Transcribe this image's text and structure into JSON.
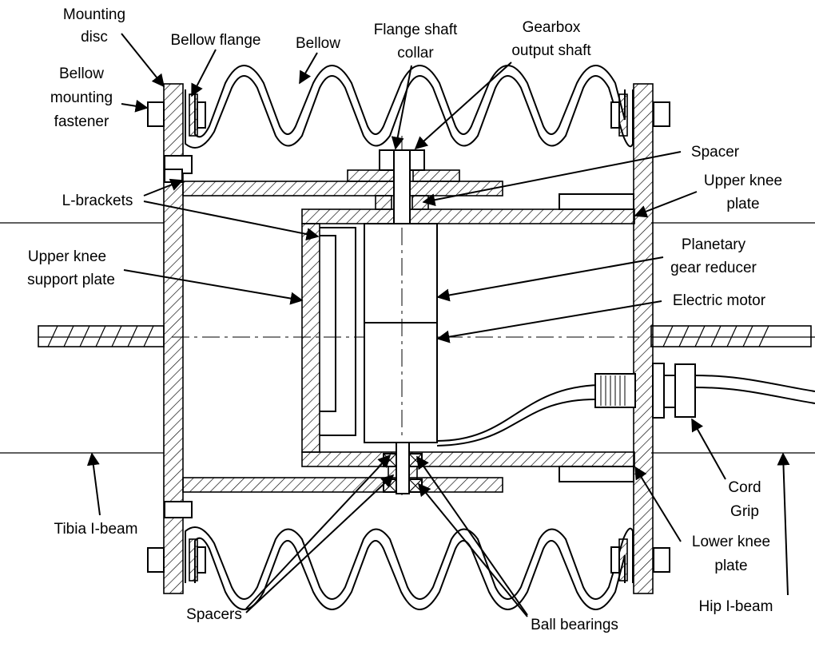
{
  "labels": {
    "mounting_disc": [
      "Mounting",
      "disc"
    ],
    "bellow_flange": "Bellow flange",
    "bellow": "Bellow",
    "flange_shaft_collar": [
      "Flange shaft",
      "collar"
    ],
    "gearbox_output_shaft": [
      "Gearbox",
      "output shaft"
    ],
    "bellow_mounting_fastener": [
      "Bellow",
      "mounting",
      "fastener"
    ],
    "spacer": "Spacer",
    "upper_knee_plate": [
      "Upper knee",
      "plate"
    ],
    "l_brackets": "L-brackets",
    "planetary_gear_reducer": [
      "Planetary",
      "gear reducer"
    ],
    "upper_knee_support_plate": [
      "Upper knee",
      "support plate"
    ],
    "electric_motor": "Electric motor",
    "cord_grip": [
      "Cord",
      "Grip"
    ],
    "tibia_i_beam": "Tibia I-beam",
    "lower_knee_plate": [
      "Lower knee",
      "plate"
    ],
    "hip_i_beam": "Hip I-beam",
    "spacers": "Spacers",
    "ball_bearings": "Ball bearings"
  },
  "colors": {
    "line": "#000000",
    "background": "#ffffff"
  }
}
